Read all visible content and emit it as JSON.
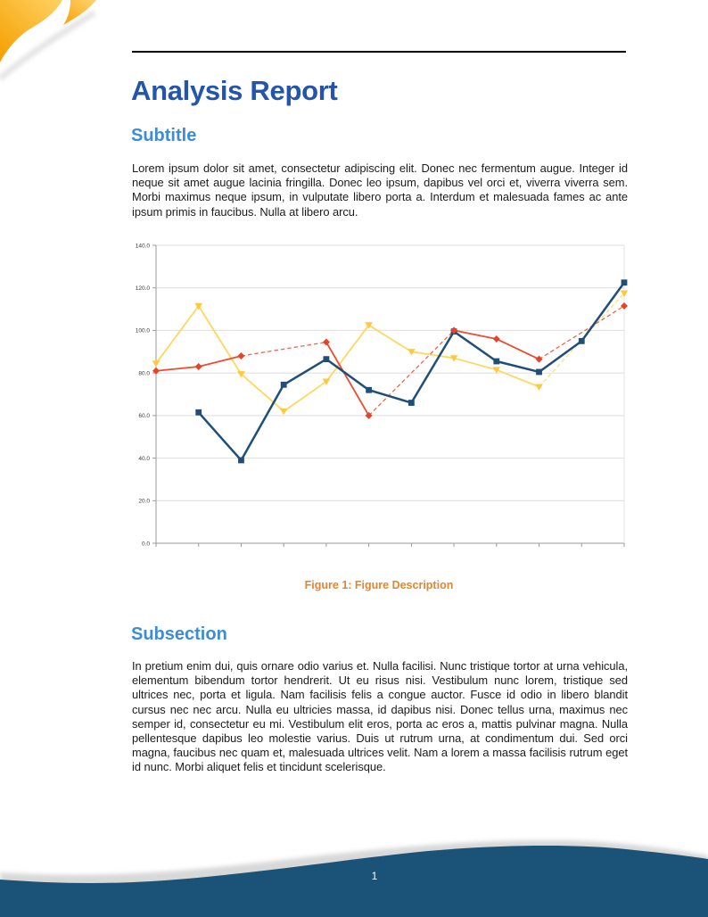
{
  "title": "Analysis Report",
  "subtitle_heading": "Subtitle",
  "paragraph1": "Lorem ipsum dolor sit amet, consectetur adipiscing elit. Donec nec fermentum augue. Integer id neque sit amet augue lacinia fringilla. Donec leo ipsum, dapibus vel orci et, viverra viverra sem. Morbi maximus neque ipsum, in vulputate libero porta a. Interdum et malesuada fames ac ante ipsum primis in faucibus. Nulla at libero arcu.",
  "figure": {
    "caption": "Figure 1: Figure Description"
  },
  "subsection_heading": "Subsection",
  "paragraph2": "In pretium enim dui, quis ornare odio varius et. Nulla facilisi. Nunc tristique tortor at urna vehicula, elementum bibendum tortor hendrerit. Ut eu risus nisi. Vestibulum nunc lorem, tristique sed ultrices nec, porta et ligula. Nam facilisis felis a congue auctor. Fusce id odio in libero blandit cursus nec nec arcu. Nulla eu ultricies massa, id dapibus nisi. Donec tellus urna, maximus nec semper id, consectetur eu mi. Vestibulum elit eros, porta ac eros a, mattis pulvinar magna. Nulla pellentesque dapibus leo molestie varius. Duis ut rutrum urna, at condimentum dui. Sed orci magna, faucibus nec quam et, malesuada ultrices velit. Nam a lorem a massa facilisis rutrum eget id nunc. Morbi aliquet felis et tincidunt scelerisque.",
  "footer": {
    "page_number": "1"
  },
  "colors": {
    "title_blue": "#2355AC",
    "heading_blue": "#3E8CD8",
    "caption_orange": "#E2862E",
    "text": "#1C1C1C",
    "rule_black": "#000000",
    "footer_blue": "#1B5278",
    "footer_shadow_gray": "#A9A9A9",
    "corner_orange_dark": "#F59E00",
    "corner_orange_light": "#FFD263",
    "chart_grid": "#DEDEDE",
    "chart_axis": "#9A9A9A",
    "chart_tick_label": "#3C3C3C"
  },
  "chart_data": {
    "type": "line",
    "title": "",
    "x_count": 12,
    "x_tick_labels": [],
    "ylim": [
      0,
      140
    ],
    "y_tick_values": [
      0,
      20,
      40,
      60,
      80,
      100,
      120,
      140
    ],
    "y_tick_labels": [
      "0.0",
      "20.0",
      "40.0",
      "60.0",
      "80.0",
      "100.0",
      "120.0",
      "140.0"
    ],
    "grid": true,
    "legend": "none",
    "missing_data_bridge": "dashed",
    "series": [
      {
        "name": "gold",
        "color": "#FFD75E",
        "marker_color": "#FFC83D",
        "marker": "triangle-down",
        "line_width": 1.8,
        "values": [
          84.5,
          111.5,
          79.5,
          62,
          76,
          102.5,
          90,
          87,
          81.5,
          73.5,
          null,
          117.5
        ]
      },
      {
        "name": "red",
        "color": "#EE4B2F",
        "marker_color": "#E8432A",
        "marker": "diamond",
        "line_width": 1.8,
        "values": [
          81,
          83,
          88,
          null,
          94.5,
          60,
          null,
          100,
          96,
          86.5,
          null,
          111.5
        ]
      },
      {
        "name": "navy",
        "color": "#1F4E79",
        "marker_color": "#1F4E79",
        "marker": "square",
        "line_width": 2.5,
        "values": [
          null,
          61.5,
          39,
          74.5,
          86.5,
          72,
          66,
          99.5,
          85.5,
          80.5,
          95,
          122.5
        ]
      }
    ],
    "marker_draw_order": [
      0,
      2,
      1
    ]
  }
}
